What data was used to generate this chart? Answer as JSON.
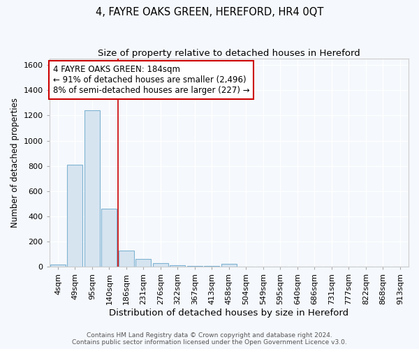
{
  "title": "4, FAYRE OAKS GREEN, HEREFORD, HR4 0QT",
  "subtitle": "Size of property relative to detached houses in Hereford",
  "xlabel": "Distribution of detached houses by size in Hereford",
  "ylabel": "Number of detached properties",
  "bar_color": "#d6e4f0",
  "bar_edge_color": "#7fb3d3",
  "categories": [
    "4sqm",
    "49sqm",
    "95sqm",
    "140sqm",
    "186sqm",
    "231sqm",
    "276sqm",
    "322sqm",
    "367sqm",
    "413sqm",
    "458sqm",
    "504sqm",
    "549sqm",
    "595sqm",
    "640sqm",
    "686sqm",
    "731sqm",
    "777sqm",
    "822sqm",
    "868sqm",
    "913sqm"
  ],
  "values": [
    20,
    810,
    1240,
    460,
    130,
    65,
    30,
    15,
    5,
    5,
    25,
    0,
    0,
    0,
    0,
    0,
    0,
    0,
    0,
    0,
    0
  ],
  "ylim": [
    0,
    1650
  ],
  "yticks": [
    0,
    200,
    400,
    600,
    800,
    1000,
    1200,
    1400,
    1600
  ],
  "property_line_index": 4,
  "property_line_color": "#cc0000",
  "annotation_text": "4 FAYRE OAKS GREEN: 184sqm\n← 91% of detached houses are smaller (2,496)\n8% of semi-detached houses are larger (227) →",
  "annotation_box_color": "white",
  "annotation_box_edge_color": "#cc0000",
  "footer_line1": "Contains HM Land Registry data © Crown copyright and database right 2024.",
  "footer_line2": "Contains public sector information licensed under the Open Government Licence v3.0.",
  "background_color": "#f5f8fc",
  "plot_bg_color": "#f5f8fc",
  "grid_color": "white",
  "title_fontsize": 10.5,
  "subtitle_fontsize": 9.5,
  "tick_fontsize": 8,
  "ylabel_fontsize": 8.5,
  "xlabel_fontsize": 9.5,
  "annotation_fontsize": 8.5,
  "footer_fontsize": 6.5
}
